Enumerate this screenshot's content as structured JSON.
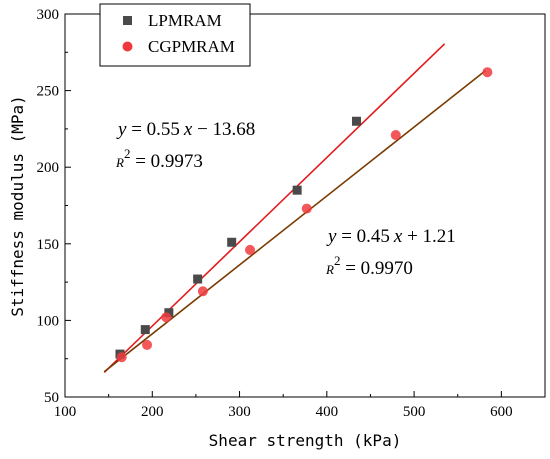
{
  "chart_data": {
    "type": "scatter",
    "xlabel": "Shear strength (kPa)",
    "ylabel": "Stiffness modulus (MPa)",
    "xlim": [
      100,
      650
    ],
    "ylim": [
      50,
      300
    ],
    "xticks": [
      100,
      200,
      300,
      400,
      500,
      600
    ],
    "yticks": [
      50,
      100,
      150,
      200,
      250,
      300
    ],
    "grid": false,
    "legend_position": "top-left",
    "series": [
      {
        "name": "LPMRAM",
        "marker": "square",
        "color": "#4a4a4a",
        "x": [
          163,
          192,
          219,
          252,
          291,
          366,
          434
        ],
        "y": [
          78,
          94,
          105,
          127,
          151,
          185,
          230
        ],
        "fit": {
          "slope": 0.55,
          "intercept": -13.68,
          "x_range": [
            145,
            535
          ],
          "color": "#e31a1c"
        },
        "equation": {
          "y": "y",
          "eq": " = 0.55",
          "x": "x",
          "rest": " − 13.68",
          "r": "R",
          "sup": "2",
          "r2": " = 0.9973"
        }
      },
      {
        "name": "CGPMRAM",
        "marker": "circle",
        "color": "#f0393d",
        "x": [
          165,
          194,
          216,
          258,
          312,
          377,
          479,
          584
        ],
        "y": [
          76,
          84,
          102,
          119,
          146,
          173,
          221,
          262
        ],
        "fit": {
          "slope": 0.45,
          "intercept": 1.21,
          "x_range": [
            145,
            582
          ],
          "color": "#7a3b00"
        },
        "equation": {
          "y": "y",
          "eq": " = 0.45",
          "x": "x",
          "rest": " + 1.21",
          "r": "R",
          "sup": "2",
          "r2": " = 0.9970"
        }
      }
    ]
  }
}
